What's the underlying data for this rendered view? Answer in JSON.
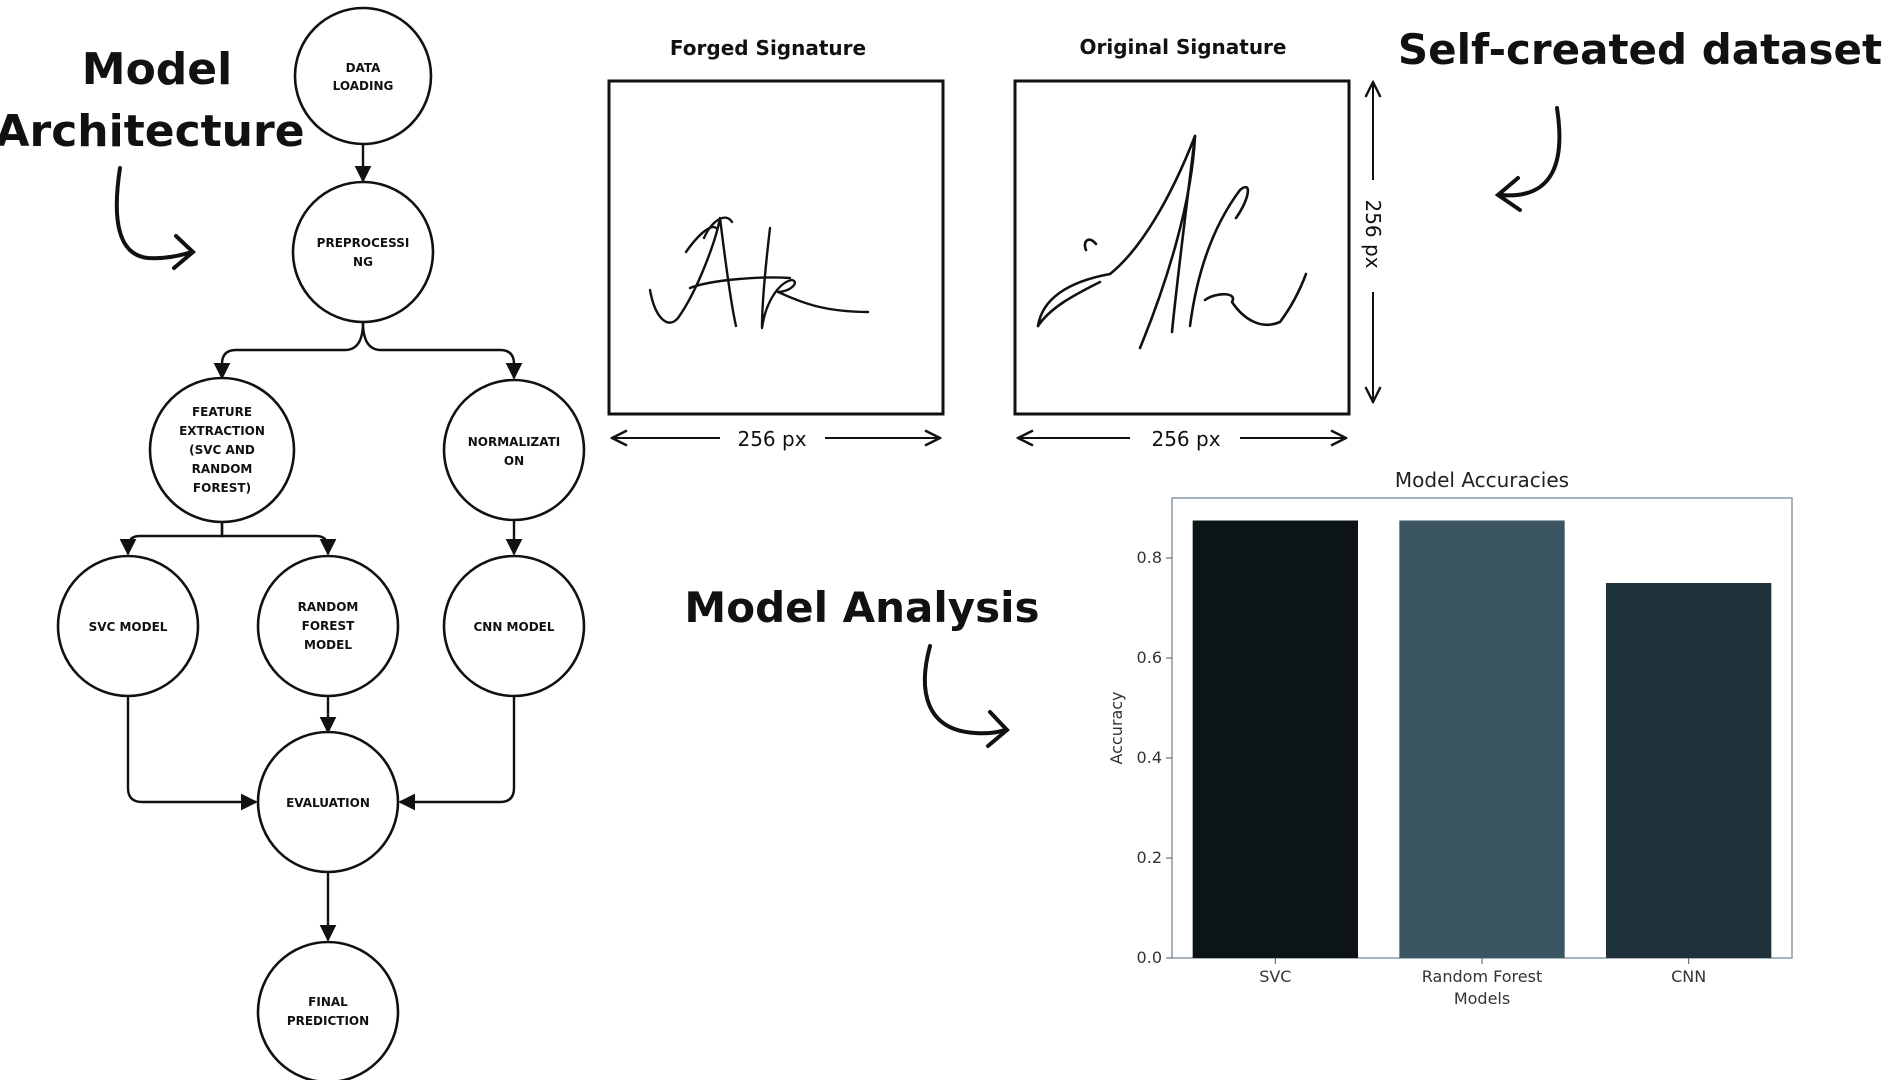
{
  "headings": {
    "model_architecture_line1": "Model",
    "model_architecture_line2": "Architecture",
    "self_created_dataset": "Self-created dataset",
    "model_analysis": "Model Analysis"
  },
  "flowchart": {
    "nodes": {
      "data_loading": [
        "DATA",
        "LOADING"
      ],
      "preprocessing": [
        "PREPROCESSI",
        "NG"
      ],
      "feature_extraction": [
        "FEATURE",
        "EXTRACTION",
        "(SVC AND",
        "RANDOM",
        "FOREST)"
      ],
      "normalization": [
        "NORMALIZATI",
        "ON"
      ],
      "svc_model": [
        "SVC MODEL"
      ],
      "random_forest_model": [
        "RANDOM",
        "FOREST",
        "MODEL"
      ],
      "cnn_model": [
        "CNN MODEL"
      ],
      "evaluation": [
        "EVALUATION"
      ],
      "final_prediction": [
        "FINAL",
        "PREDICTION"
      ]
    }
  },
  "signatures": {
    "forged_title": "Forged Signature",
    "original_title": "Original Signature",
    "width_label": "256 px",
    "height_label": "256 px"
  },
  "chart_data": {
    "type": "bar",
    "title": "Model Accuracies",
    "xlabel": "Models",
    "ylabel": "Accuracy",
    "categories": [
      "SVC",
      "Random Forest",
      "CNN"
    ],
    "values": [
      0.875,
      0.875,
      0.75
    ],
    "colors": [
      "#0c1418",
      "#3b5562",
      "#1f313b"
    ],
    "ylim": [
      0,
      0.92
    ],
    "yticks": [
      "0.0",
      "0.2",
      "0.4",
      "0.6",
      "0.8"
    ],
    "grid": false
  }
}
